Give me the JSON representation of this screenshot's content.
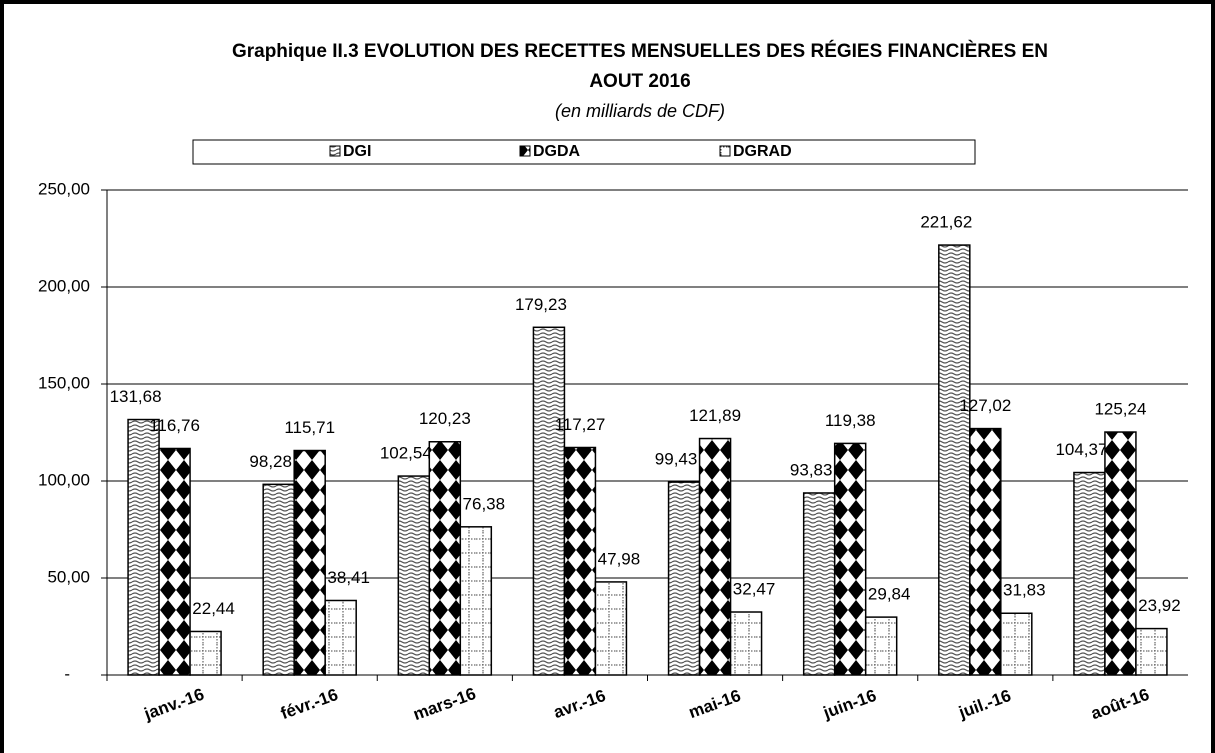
{
  "chart_data": {
    "type": "bar",
    "title": [
      "Graphique II.3 EVOLUTION DES RECETTES MENSUELLES DES RÉGIES FINANCIÈRES  EN",
      "AOUT  2016"
    ],
    "subtitle": "(en milliards de CDF)",
    "categories": [
      "janv.-16",
      "févr.-16",
      "mars-16",
      "avr.-16",
      "mai-16",
      "juin-16",
      "juil.-16",
      "août-16"
    ],
    "series": [
      {
        "name": "DGI",
        "color": "#000000",
        "values": [
          131.68,
          98.28,
          102.54,
          179.23,
          99.43,
          93.83,
          221.62,
          104.37
        ],
        "value_labels": [
          "131,68",
          "98,28",
          "102,54",
          "179,23",
          "99,43",
          "93,83",
          "221,62",
          "104,37"
        ]
      },
      {
        "name": "DGDA",
        "color": "#000000",
        "values": [
          116.76,
          115.71,
          120.23,
          117.27,
          121.89,
          119.38,
          127.02,
          125.24
        ],
        "value_labels": [
          "116,76",
          "115,71",
          "120,23",
          "117,27",
          "121,89",
          "119,38",
          "127,02",
          "125,24"
        ]
      },
      {
        "name": "DGRAD",
        "color": "#000000",
        "values": [
          22.44,
          38.41,
          76.38,
          47.98,
          32.47,
          29.84,
          31.83,
          23.92
        ],
        "value_labels": [
          "22,44",
          "38,41",
          "76,38",
          "47,98",
          "32,47",
          "29,84",
          "31,83",
          "23,92"
        ]
      }
    ],
    "ylim": [
      0,
      250
    ],
    "yticks": [
      {
        "value": 0,
        "label": "-"
      },
      {
        "value": 50,
        "label": "50,00"
      },
      {
        "value": 100,
        "label": "100,00"
      },
      {
        "value": 150,
        "label": "150,00"
      },
      {
        "value": 200,
        "label": "200,00"
      },
      {
        "value": 250,
        "label": "250,00"
      }
    ],
    "grid": true,
    "legend": "top"
  }
}
